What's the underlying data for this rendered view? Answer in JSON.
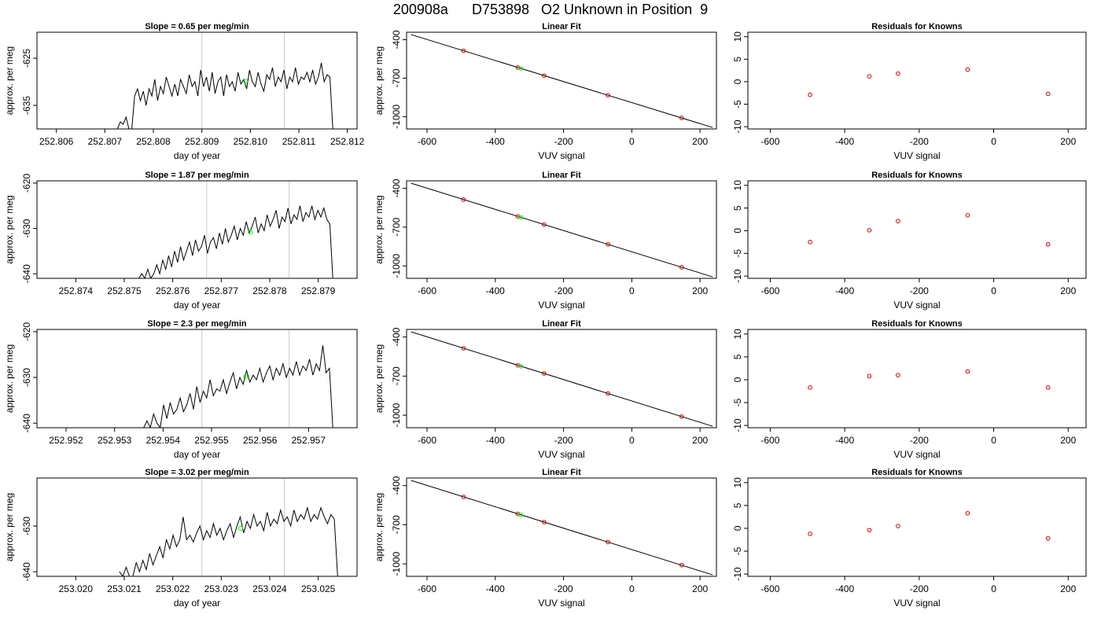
{
  "figure": {
    "title": "200908a      D753898   O2 Unknown in Position  9"
  },
  "chart_data": [
    {
      "type": "line",
      "panel": "timeseries",
      "row": 0,
      "title": "Slope =  0.65  per meg/min",
      "xlabel": "day of year",
      "ylabel": "approx. per meg",
      "xlim": [
        252.8056,
        252.8122
      ],
      "ylim": [
        -640,
        -619.5
      ],
      "xticks": [
        252.806,
        252.807,
        252.808,
        252.809,
        252.81,
        252.811,
        252.812
      ],
      "xtick_labels": [
        "252.806",
        "252.807",
        "252.808",
        "252.809",
        "252.810",
        "252.811",
        "252.812"
      ],
      "yticks": [
        -625,
        -635
      ],
      "ytick_labels": [
        "-625",
        "-635"
      ],
      "vlines": [
        252.809,
        252.8107
      ],
      "x_start": 252.8072,
      "x_end": 252.8117,
      "values": [
        -640,
        -640,
        -638.5,
        -639,
        -637.5,
        -640,
        -640,
        -633,
        -631.5,
        -634,
        -632,
        -635,
        -631.5,
        -633,
        -629.5,
        -634,
        -631,
        -632.5,
        -629,
        -631,
        -633,
        -630.5,
        -633,
        -629.5,
        -631,
        -632.5,
        -628.5,
        -631,
        -630,
        -633,
        -627.5,
        -631,
        -629,
        -632,
        -628,
        -632.5,
        -630,
        -629,
        -633,
        -628.5,
        -631,
        -630,
        -632,
        -628,
        -630.5,
        -629.5,
        -631.5,
        -627.5,
        -630,
        -631,
        -628,
        -630.5,
        -632,
        -628.5,
        -629.5,
        -627,
        -631,
        -629,
        -630,
        -627.5,
        -631.5,
        -629,
        -630,
        -627,
        -630.5,
        -629,
        -629.5,
        -628,
        -630,
        -627.5,
        -630.5,
        -629,
        -626,
        -630,
        -628.5,
        -629,
        -640
      ],
      "point": {
        "x": 252.8099,
        "y": -629.9,
        "color": "#00ff00"
      }
    },
    {
      "type": "scatter",
      "panel": "fit",
      "row": 0,
      "title": "Linear Fit",
      "xlabel": "VUV signal",
      "ylabel": "approx. per meg",
      "xlim": [
        -660,
        248
      ],
      "ylim": [
        -1096,
        -342
      ],
      "xticks": [
        -600,
        -400,
        -200,
        0,
        200
      ],
      "xtick_labels": [
        "-600",
        "-400",
        "-200",
        "0",
        "200"
      ],
      "yticks": [
        -400,
        -700,
        -1000
      ],
      "ytick_labels": [
        "-400",
        "-700",
        "-1000"
      ],
      "fit_line": {
        "x": [
          -647,
          237
        ],
        "y": [
          -360,
          -1085
        ]
      },
      "points": [
        {
          "x": -493,
          "y": -487
        },
        {
          "x": -334,
          "y": -617
        },
        {
          "x": -257,
          "y": -680
        },
        {
          "x": -70,
          "y": -833
        },
        {
          "x": 146,
          "y": -1010
        }
      ],
      "point_color": "#cc0000",
      "unknown": {
        "x": -325,
        "y": -625,
        "color": "#00ff00"
      }
    },
    {
      "type": "scatter",
      "panel": "residuals",
      "row": 0,
      "title": "Residuals for Knowns",
      "xlabel": "VUV signal",
      "xlim": [
        -660,
        248
      ],
      "ylim": [
        -10.5,
        11
      ],
      "xticks": [
        -600,
        -400,
        -200,
        0,
        200
      ],
      "xtick_labels": [
        "-600",
        "-400",
        "-200",
        "0",
        "200"
      ],
      "yticks": [
        10,
        5,
        0,
        -5,
        -10
      ],
      "ytick_labels": [
        "10",
        "5",
        "0",
        "-5",
        "-10"
      ],
      "points": [
        {
          "x": -493,
          "y": -2.9
        },
        {
          "x": -334,
          "y": 1.2
        },
        {
          "x": -257,
          "y": 1.8
        },
        {
          "x": -70,
          "y": 2.7
        },
        {
          "x": 146,
          "y": -2.7
        }
      ],
      "point_color": "#cc0000"
    },
    {
      "type": "line",
      "panel": "timeseries",
      "row": 1,
      "title": "Slope =  1.87  per meg/min",
      "xlabel": "day of year",
      "ylabel": "approx. per meg",
      "xlim": [
        252.8732,
        252.8798
      ],
      "ylim": [
        -641,
        -619.5
      ],
      "xticks": [
        252.874,
        252.875,
        252.876,
        252.877,
        252.878,
        252.879
      ],
      "xtick_labels": [
        "252.874",
        "252.875",
        "252.876",
        "252.877",
        "252.878",
        "252.879"
      ],
      "yticks": [
        -620,
        -630,
        -640
      ],
      "ytick_labels": [
        "-620",
        "-630",
        "-640"
      ],
      "vlines": [
        252.8767,
        252.8784
      ],
      "x_start": 252.8753,
      "x_end": 252.8793,
      "values": [
        -641,
        -640,
        -641,
        -639,
        -641,
        -640,
        -638,
        -640,
        -637,
        -639,
        -636,
        -638.5,
        -635,
        -637.5,
        -634,
        -637,
        -635,
        -633,
        -636,
        -632.5,
        -635,
        -634,
        -631.5,
        -635.5,
        -633,
        -632,
        -634.5,
        -631,
        -633.5,
        -630,
        -633,
        -631.5,
        -629.5,
        -632.5,
        -630,
        -631.5,
        -628.5,
        -631,
        -629.5,
        -627.5,
        -631,
        -629,
        -630.5,
        -627,
        -629.5,
        -628,
        -626,
        -630,
        -627.5,
        -628.5,
        -625.5,
        -629,
        -627,
        -628,
        -625,
        -628.5,
        -626.5,
        -627.5,
        -625,
        -628,
        -626,
        -627.5,
        -625.5,
        -628,
        -629,
        -641
      ],
      "point": {
        "x": 252.8776,
        "y": -630.8,
        "color": "#00ff00"
      }
    },
    {
      "type": "scatter",
      "panel": "fit",
      "row": 1,
      "title": "Linear Fit",
      "xlabel": "VUV signal",
      "ylabel": "approx. per meg",
      "xlim": [
        -660,
        248
      ],
      "ylim": [
        -1096,
        -342
      ],
      "xticks": [
        -600,
        -400,
        -200,
        0,
        200
      ],
      "xtick_labels": [
        "-600",
        "-400",
        "-200",
        "0",
        "200"
      ],
      "yticks": [
        -400,
        -700,
        -1000
      ],
      "ytick_labels": [
        "-400",
        "-700",
        "-1000"
      ],
      "fit_line": {
        "x": [
          -647,
          237
        ],
        "y": [
          -360,
          -1085
        ]
      },
      "points": [
        {
          "x": -493,
          "y": -487
        },
        {
          "x": -334,
          "y": -617
        },
        {
          "x": -257,
          "y": -680
        },
        {
          "x": -70,
          "y": -833
        },
        {
          "x": 146,
          "y": -1010
        }
      ],
      "point_color": "#cc0000",
      "unknown": {
        "x": -325,
        "y": -625,
        "color": "#00ff00"
      }
    },
    {
      "type": "scatter",
      "panel": "residuals",
      "row": 1,
      "title": "Residuals for Knowns",
      "xlabel": "VUV signal",
      "xlim": [
        -660,
        248
      ],
      "ylim": [
        -10.5,
        11
      ],
      "xticks": [
        -600,
        -400,
        -200,
        0,
        200
      ],
      "xtick_labels": [
        "-600",
        "-400",
        "-200",
        "0",
        "200"
      ],
      "yticks": [
        10,
        5,
        0,
        -5,
        -10
      ],
      "ytick_labels": [
        "10",
        "5",
        "0",
        "-5",
        "-10"
      ],
      "points": [
        {
          "x": -493,
          "y": -2.5
        },
        {
          "x": -334,
          "y": 0.1
        },
        {
          "x": -257,
          "y": 2.1
        },
        {
          "x": -70,
          "y": 3.4
        },
        {
          "x": 146,
          "y": -3.0
        }
      ],
      "point_color": "#cc0000"
    },
    {
      "type": "line",
      "panel": "timeseries",
      "row": 2,
      "title": "Slope =  2.3  per meg/min",
      "xlabel": "day of year",
      "ylabel": "approx. per meg",
      "xlim": [
        252.9514,
        252.958
      ],
      "ylim": [
        -641,
        -619.5
      ],
      "xticks": [
        252.952,
        252.953,
        252.954,
        252.955,
        252.956,
        252.957
      ],
      "xtick_labels": [
        "252.952",
        "252.953",
        "252.954",
        "252.955",
        "252.956",
        "252.957"
      ],
      "yticks": [
        -620,
        -630,
        -640
      ],
      "ytick_labels": [
        "-620",
        "-630",
        "-640"
      ],
      "vlines": [
        252.9548,
        252.9566
      ],
      "x_start": 252.9536,
      "x_end": 252.9575,
      "values": [
        -641,
        -639.5,
        -641,
        -638,
        -640,
        -641,
        -636,
        -639,
        -635.5,
        -638,
        -637,
        -634.5,
        -637.5,
        -636,
        -633.5,
        -637,
        -632,
        -635.5,
        -633,
        -634.5,
        -630.5,
        -634,
        -632.5,
        -633,
        -630.5,
        -633.5,
        -631,
        -629,
        -632.5,
        -630,
        -631.5,
        -628.5,
        -631,
        -629.5,
        -630.5,
        -628,
        -631,
        -629,
        -627.5,
        -630.5,
        -628,
        -629.5,
        -627,
        -630,
        -628,
        -629.5,
        -626.5,
        -629.5,
        -627.5,
        -628.5,
        -626,
        -629.5,
        -627,
        -628.5,
        -623,
        -629,
        -628,
        -641
      ],
      "point": {
        "x": 252.9557,
        "y": -629.8,
        "color": "#00ff00"
      }
    },
    {
      "type": "scatter",
      "panel": "fit",
      "row": 2,
      "title": "Linear Fit",
      "xlabel": "VUV signal",
      "ylabel": "approx. per meg",
      "xlim": [
        -660,
        248
      ],
      "ylim": [
        -1096,
        -342
      ],
      "xticks": [
        -600,
        -400,
        -200,
        0,
        200
      ],
      "xtick_labels": [
        "-600",
        "-400",
        "-200",
        "0",
        "200"
      ],
      "yticks": [
        -400,
        -700,
        -1000
      ],
      "ytick_labels": [
        "-400",
        "-700",
        "-1000"
      ],
      "fit_line": {
        "x": [
          -647,
          237
        ],
        "y": [
          -360,
          -1085
        ]
      },
      "points": [
        {
          "x": -493,
          "y": -487
        },
        {
          "x": -334,
          "y": -617
        },
        {
          "x": -257,
          "y": -680
        },
        {
          "x": -70,
          "y": -833
        },
        {
          "x": 146,
          "y": -1010
        }
      ],
      "point_color": "#cc0000",
      "unknown": {
        "x": -325,
        "y": -625,
        "color": "#00ff00"
      }
    },
    {
      "type": "scatter",
      "panel": "residuals",
      "row": 2,
      "title": "Residuals for Knowns",
      "xlabel": "VUV signal",
      "xlim": [
        -660,
        248
      ],
      "ylim": [
        -10.5,
        11
      ],
      "xticks": [
        -600,
        -400,
        -200,
        0,
        200
      ],
      "xtick_labels": [
        "-600",
        "-400",
        "-200",
        "0",
        "200"
      ],
      "yticks": [
        10,
        5,
        0,
        -5,
        -10
      ],
      "ytick_labels": [
        "10",
        "5",
        "0",
        "-5",
        "-10"
      ],
      "points": [
        {
          "x": -493,
          "y": -1.7
        },
        {
          "x": -334,
          "y": 0.8
        },
        {
          "x": -257,
          "y": 1.0
        },
        {
          "x": -70,
          "y": 1.8
        },
        {
          "x": 146,
          "y": -1.7
        }
      ],
      "point_color": "#cc0000"
    },
    {
      "type": "line",
      "panel": "timeseries",
      "row": 3,
      "title": "Slope =  3.02  per meg/min",
      "xlabel": "day of year",
      "ylabel": "approx. per meg",
      "xlim": [
        253.0192,
        253.0258
      ],
      "ylim": [
        -641,
        -619.5
      ],
      "xticks": [
        253.02,
        253.021,
        253.022,
        253.023,
        253.024,
        253.025
      ],
      "xtick_labels": [
        "253.020",
        "253.021",
        "253.022",
        "253.023",
        "253.024",
        "253.025"
      ],
      "yticks": [
        -630,
        -640
      ],
      "ytick_labels": [
        "-630",
        "-640"
      ],
      "vlines": [
        253.0226,
        253.0243
      ],
      "x_start": 253.0209,
      "x_end": 253.0254,
      "values": [
        -640,
        -641,
        -639,
        -641,
        -641,
        -638,
        -640,
        -637.5,
        -639.5,
        -636,
        -638.5,
        -636.5,
        -634.5,
        -637,
        -633,
        -635,
        -632,
        -634.5,
        -633,
        -628,
        -633,
        -632,
        -633.5,
        -631.5,
        -630,
        -633,
        -631,
        -632.5,
        -629.5,
        -632,
        -630.5,
        -633,
        -631,
        -629.5,
        -632.5,
        -630,
        -628,
        -631.5,
        -629,
        -630.5,
        -627.5,
        -630,
        -629,
        -631,
        -627,
        -630,
        -628.5,
        -629.5,
        -626.5,
        -629,
        -628,
        -630,
        -626.5,
        -629,
        -627.5,
        -628.5,
        -626,
        -629,
        -627.5,
        -628.5,
        -626,
        -628,
        -629.5,
        -627.5,
        -628.5,
        -641
      ],
      "point": {
        "x": 253.0234,
        "y": -630.5,
        "color": "#00ff00"
      }
    },
    {
      "type": "scatter",
      "panel": "fit",
      "row": 3,
      "title": "Linear Fit",
      "xlabel": "VUV signal",
      "ylabel": "approx. per meg",
      "xlim": [
        -660,
        248
      ],
      "ylim": [
        -1096,
        -342
      ],
      "xticks": [
        -600,
        -400,
        -200,
        0,
        200
      ],
      "xtick_labels": [
        "-600",
        "-400",
        "-200",
        "0",
        "200"
      ],
      "yticks": [
        -400,
        -700,
        -1000
      ],
      "ytick_labels": [
        "-400",
        "-700",
        "-1000"
      ],
      "fit_line": {
        "x": [
          -647,
          237
        ],
        "y": [
          -360,
          -1085
        ]
      },
      "points": [
        {
          "x": -493,
          "y": -487
        },
        {
          "x": -334,
          "y": -617
        },
        {
          "x": -257,
          "y": -680
        },
        {
          "x": -70,
          "y": -833
        },
        {
          "x": 146,
          "y": -1010
        }
      ],
      "point_color": "#cc0000",
      "unknown": {
        "x": -325,
        "y": -625,
        "color": "#00ff00"
      }
    },
    {
      "type": "scatter",
      "panel": "residuals",
      "row": 3,
      "title": "Residuals for Knowns",
      "xlabel": "VUV signal",
      "xlim": [
        -660,
        248
      ],
      "ylim": [
        -10.5,
        11
      ],
      "xticks": [
        -600,
        -400,
        -200,
        0,
        200
      ],
      "xtick_labels": [
        "-600",
        "-400",
        "-200",
        "0",
        "200"
      ],
      "yticks": [
        10,
        5,
        0,
        -5,
        -10
      ],
      "ytick_labels": [
        "10",
        "5",
        "0",
        "-5",
        "-10"
      ],
      "points": [
        {
          "x": -493,
          "y": -1.2
        },
        {
          "x": -334,
          "y": -0.4
        },
        {
          "x": -257,
          "y": 0.5
        },
        {
          "x": -70,
          "y": 3.3
        },
        {
          "x": 146,
          "y": -2.2
        }
      ],
      "point_color": "#cc0000"
    }
  ]
}
